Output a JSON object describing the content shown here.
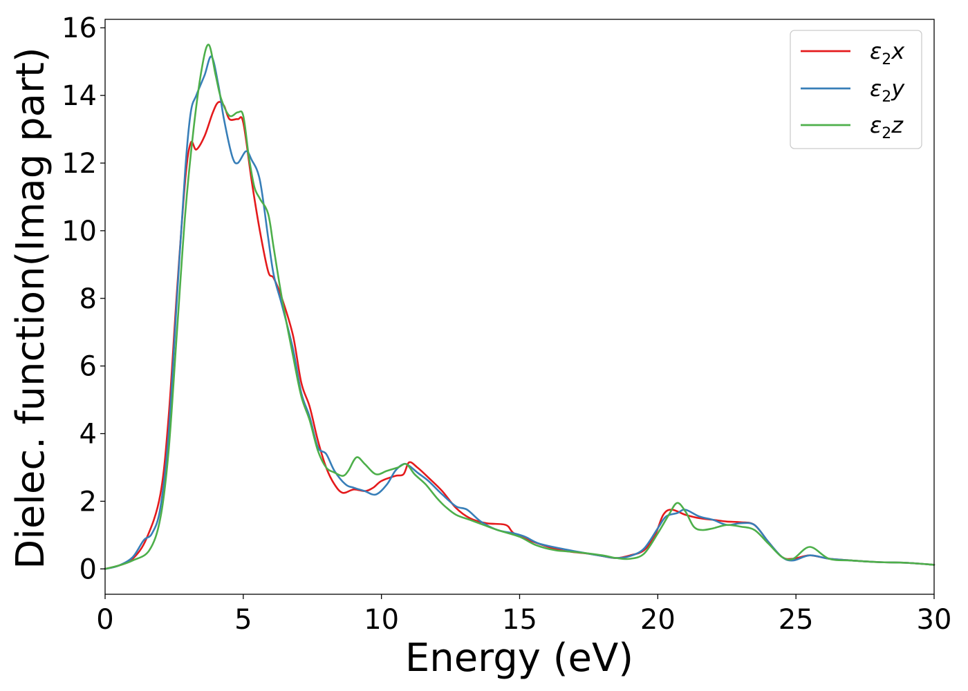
{
  "chart_data": {
    "type": "line",
    "xlabel": "Energy (eV)",
    "ylabel": "Dielec. function(Imag part)",
    "xlim": [
      0,
      30
    ],
    "ylim": [
      -0.75,
      16.25
    ],
    "xticks": [
      0,
      5,
      10,
      15,
      20,
      25,
      30
    ],
    "yticks": [
      0,
      2,
      4,
      6,
      8,
      10,
      12,
      14,
      16
    ],
    "grid": false,
    "legend_position": "top-right",
    "series": [
      {
        "name": "ε₂x",
        "name_main": "ε",
        "name_sub": "2",
        "name_tail": "x",
        "color": "#e41a1c",
        "x": [
          0,
          0.5,
          1.0,
          1.5,
          2.0,
          2.3,
          2.6,
          2.9,
          3.1,
          3.3,
          3.6,
          3.9,
          4.1,
          4.3,
          4.5,
          4.8,
          5.0,
          5.3,
          5.6,
          5.9,
          6.1,
          6.4,
          6.8,
          7.1,
          7.4,
          7.7,
          8.0,
          8.3,
          8.6,
          9.0,
          9.4,
          9.7,
          10.0,
          10.5,
          10.8,
          11.0,
          11.3,
          11.7,
          12.2,
          12.7,
          13.2,
          13.8,
          14.5,
          14.8,
          15.5,
          16.5,
          17.5,
          18.0,
          18.5,
          19.0,
          19.5,
          19.9,
          20.2,
          20.5,
          21.0,
          21.5,
          22.0,
          22.5,
          23.0,
          23.5,
          24.0,
          24.5,
          24.9,
          25.5,
          26.2,
          27.0,
          28.0,
          29.0,
          30.0
        ],
        "y": [
          0,
          0.1,
          0.3,
          0.9,
          2.2,
          4.5,
          8.2,
          11.5,
          12.6,
          12.4,
          12.8,
          13.5,
          13.8,
          13.7,
          13.3,
          13.3,
          13.2,
          11.5,
          10.0,
          8.8,
          8.6,
          8.0,
          6.9,
          5.5,
          4.8,
          3.8,
          3.0,
          2.5,
          2.25,
          2.35,
          2.3,
          2.4,
          2.6,
          2.75,
          2.8,
          3.15,
          3.0,
          2.7,
          2.3,
          1.8,
          1.5,
          1.35,
          1.3,
          1.05,
          0.8,
          0.55,
          0.45,
          0.38,
          0.32,
          0.4,
          0.55,
          1.0,
          1.6,
          1.75,
          1.6,
          1.5,
          1.45,
          1.4,
          1.38,
          1.3,
          0.8,
          0.35,
          0.3,
          0.4,
          0.3,
          0.25,
          0.2,
          0.18,
          0.12
        ]
      },
      {
        "name": "ε₂y",
        "name_main": "ε",
        "name_sub": "2",
        "name_tail": "y",
        "color": "#377eb8",
        "x": [
          0,
          0.5,
          1.0,
          1.4,
          1.7,
          2.0,
          2.3,
          2.6,
          2.9,
          3.1,
          3.3,
          3.6,
          3.85,
          4.1,
          4.3,
          4.6,
          4.8,
          5.1,
          5.3,
          5.6,
          5.9,
          6.1,
          6.4,
          6.8,
          7.1,
          7.4,
          7.7,
          8.0,
          8.3,
          8.7,
          9.0,
          9.4,
          9.8,
          10.2,
          10.5,
          10.8,
          11.0,
          11.3,
          11.7,
          12.2,
          12.7,
          13.1,
          13.6,
          14.2,
          14.8,
          15.2,
          15.7,
          16.5,
          17.5,
          18.0,
          18.5,
          19.0,
          19.5,
          20.0,
          20.3,
          20.7,
          21.0,
          21.5,
          22.0,
          22.5,
          23.0,
          23.5,
          24.0,
          24.5,
          24.9,
          25.5,
          26.2,
          27.0,
          28.0,
          29.0,
          30.0
        ],
        "y": [
          0,
          0.1,
          0.35,
          0.85,
          1.05,
          1.8,
          4.0,
          8.0,
          11.8,
          13.5,
          14.0,
          14.6,
          15.15,
          14.3,
          13.3,
          12.2,
          12.0,
          12.35,
          12.1,
          11.5,
          9.8,
          8.7,
          7.8,
          6.5,
          5.2,
          4.5,
          3.6,
          3.4,
          2.9,
          2.5,
          2.4,
          2.3,
          2.2,
          2.5,
          2.9,
          3.1,
          3.05,
          2.85,
          2.6,
          2.2,
          1.85,
          1.75,
          1.4,
          1.15,
          1.05,
          0.95,
          0.75,
          0.6,
          0.45,
          0.38,
          0.32,
          0.38,
          0.6,
          1.2,
          1.55,
          1.65,
          1.75,
          1.55,
          1.45,
          1.3,
          1.35,
          1.3,
          0.8,
          0.35,
          0.25,
          0.4,
          0.3,
          0.25,
          0.2,
          0.18,
          0.12
        ]
      },
      {
        "name": "ε₂z",
        "name_main": "ε",
        "name_sub": "2",
        "name_tail": "z",
        "color": "#4daf4a",
        "x": [
          0,
          0.5,
          1.0,
          1.6,
          2.0,
          2.3,
          2.6,
          2.9,
          3.2,
          3.5,
          3.75,
          4.0,
          4.2,
          4.5,
          4.8,
          5.0,
          5.2,
          5.4,
          5.6,
          5.9,
          6.1,
          6.4,
          6.8,
          7.1,
          7.4,
          7.7,
          8.0,
          8.3,
          8.6,
          8.8,
          9.1,
          9.4,
          9.8,
          10.2,
          10.6,
          10.9,
          11.2,
          11.6,
          12.0,
          12.3,
          12.7,
          13.2,
          13.7,
          14.2,
          15.0,
          15.6,
          16.3,
          17.0,
          18.0,
          18.5,
          19.0,
          19.5,
          20.0,
          20.4,
          20.7,
          21.0,
          21.3,
          21.6,
          22.0,
          22.5,
          23.0,
          23.5,
          24.0,
          24.5,
          24.9,
          25.5,
          26.2,
          27.0,
          28.0,
          29.0,
          30.0
        ],
        "y": [
          0,
          0.1,
          0.25,
          0.55,
          1.5,
          3.5,
          7.0,
          10.5,
          13.0,
          14.8,
          15.5,
          14.6,
          13.9,
          13.4,
          13.5,
          13.4,
          12.2,
          11.3,
          10.95,
          10.5,
          9.5,
          8.0,
          6.3,
          5.1,
          4.4,
          3.5,
          3.0,
          2.85,
          2.75,
          2.9,
          3.3,
          3.1,
          2.8,
          2.9,
          3.0,
          3.1,
          2.8,
          2.5,
          2.1,
          1.85,
          1.6,
          1.45,
          1.3,
          1.15,
          0.95,
          0.7,
          0.55,
          0.5,
          0.4,
          0.32,
          0.3,
          0.45,
          1.05,
          1.6,
          1.95,
          1.7,
          1.25,
          1.15,
          1.2,
          1.3,
          1.25,
          1.15,
          0.75,
          0.35,
          0.3,
          0.65,
          0.3,
          0.25,
          0.2,
          0.18,
          0.12
        ]
      }
    ]
  }
}
